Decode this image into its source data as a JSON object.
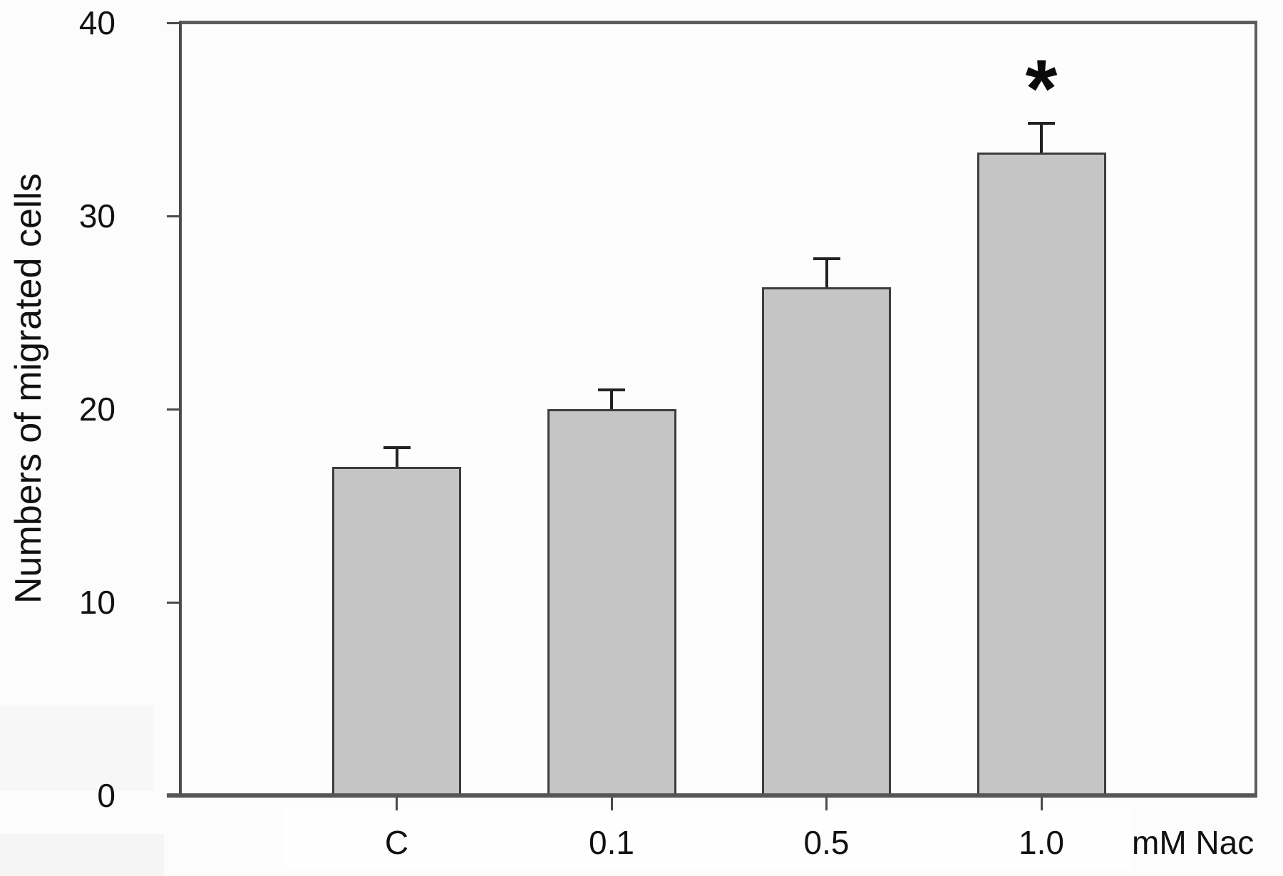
{
  "chart_data": {
    "type": "bar",
    "title": "",
    "xlabel": "",
    "ylabel": "Numbers of migrated cells",
    "unit_label": "mM Nac",
    "categories": [
      "C",
      "0.1",
      "0.5",
      "1.0"
    ],
    "values": [
      17.0,
      20.0,
      26.3,
      33.3
    ],
    "errors_plus": [
      1.0,
      1.0,
      1.5,
      1.5
    ],
    "ylim": [
      0,
      40
    ],
    "yticks": [
      0,
      10,
      20,
      30,
      40
    ],
    "grid": false,
    "legend": false,
    "annotations": [
      {
        "category": "1.0",
        "text": "*",
        "meaning": "statistical-significance-marker"
      }
    ],
    "colors": {
      "bar_fill": "#c5c5c5",
      "bar_edge": "#3d3d3d",
      "axis": "#4a4a4a",
      "frame": "#5d5d5d",
      "baseline": "#555555",
      "error_bar": "#222222",
      "text": "#111111"
    }
  }
}
